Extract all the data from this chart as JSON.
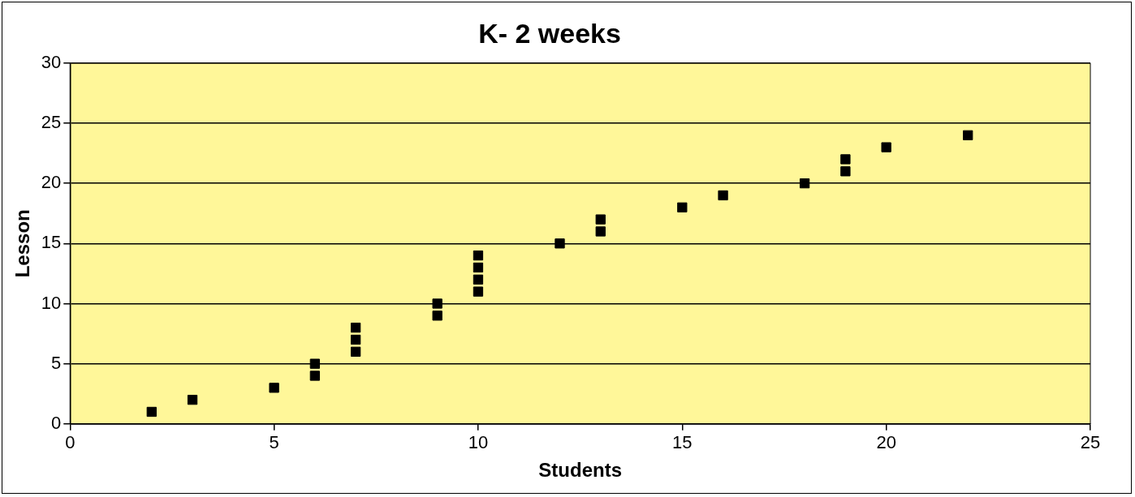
{
  "chart_data": {
    "type": "scatter",
    "title": "K- 2 weeks",
    "xlabel": "Students",
    "ylabel": "Lesson",
    "x": [
      2,
      3,
      5,
      6,
      6,
      7,
      7,
      7,
      9,
      9,
      10,
      10,
      10,
      10,
      12,
      13,
      13,
      15,
      16,
      18,
      19,
      19,
      20,
      22
    ],
    "series": [
      {
        "color": "#000000",
        "values": [
          1,
          2,
          3,
          4,
          5,
          6,
          7,
          8,
          9,
          10,
          11,
          12,
          13,
          14,
          15,
          16,
          17,
          18,
          19,
          20,
          21,
          22,
          23,
          24
        ]
      }
    ],
    "xlim": [
      0,
      25
    ],
    "xticks": [
      0,
      5,
      10,
      15,
      20,
      25
    ],
    "ylim": [
      0,
      30
    ],
    "yticks": [
      0,
      5,
      10,
      15,
      20,
      25,
      30
    ],
    "grid": "y",
    "legend": false,
    "marker": "square"
  }
}
